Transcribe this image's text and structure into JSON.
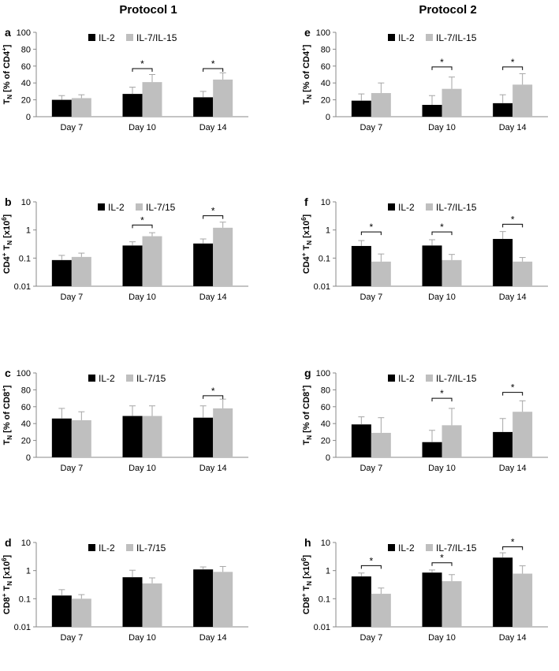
{
  "protocol_titles": [
    "Protocol 1",
    "Protocol 2"
  ],
  "colors": {
    "il2": "#000000",
    "il7": "#bfbfbf",
    "error_bar": "#a6a6a6",
    "axis": "#888888"
  },
  "chart_data": [
    {
      "panel": "a",
      "type": "bar",
      "scale": "linear",
      "ylabel_main": "T",
      "ylabel_sub": "N",
      "ylabel_rest": " [% of CD4",
      "ylabel_sup": "+",
      "ylabel_end": "]",
      "ylim": [
        0,
        100
      ],
      "ticks": [
        0,
        20,
        40,
        60,
        80,
        100
      ],
      "tick_labels": [
        "0",
        "20",
        "40",
        "60",
        "80",
        "100"
      ],
      "categories": [
        "Day 7",
        "Day 10",
        "Day 14"
      ],
      "series": [
        {
          "name": "IL-2",
          "values": [
            20,
            27,
            23
          ],
          "errors": [
            5,
            8,
            7
          ]
        },
        {
          "name": "IL-7/IL-15",
          "values": [
            22,
            41,
            44
          ],
          "errors": [
            4,
            9,
            8
          ]
        }
      ],
      "sig": [
        {
          "category": 1,
          "label": "*",
          "y": 57
        },
        {
          "category": 2,
          "label": "*",
          "y": 57
        }
      ]
    },
    {
      "panel": "b",
      "type": "bar",
      "scale": "log",
      "ylabel_main": "CD4",
      "ylabel_sup": "+",
      "ylabel_mid": " T",
      "ylabel_sub": "N",
      "ylabel_rest": " [x10",
      "ylabel_sup2": "6",
      "ylabel_end": "]",
      "ylim": [
        0.01,
        10
      ],
      "ticks": [
        0.01,
        0.1,
        1,
        10
      ],
      "tick_labels": [
        "0.01",
        "0.1",
        "1",
        "10"
      ],
      "categories": [
        "Day 7",
        "Day 10",
        "Day 14"
      ],
      "series": [
        {
          "name": "IL-2",
          "values": [
            0.085,
            0.28,
            0.33
          ],
          "errors": [
            0.04,
            0.1,
            0.15
          ]
        },
        {
          "name": "IL-7/15",
          "values": [
            0.11,
            0.6,
            1.2
          ],
          "errors": [
            0.04,
            0.2,
            0.7
          ]
        }
      ],
      "sig": [
        {
          "category": 1,
          "label": "*",
          "y": 1.5
        },
        {
          "category": 2,
          "label": "*",
          "y": 3.2
        }
      ]
    },
    {
      "panel": "c",
      "type": "bar",
      "scale": "linear",
      "ylabel_main": "T",
      "ylabel_sub": "N",
      "ylabel_rest": " [% of CD8",
      "ylabel_sup": "+",
      "ylabel_end": "]",
      "ylim": [
        0,
        100
      ],
      "ticks": [
        0,
        20,
        40,
        60,
        80,
        100
      ],
      "tick_labels": [
        "0",
        "20",
        "40",
        "60",
        "80",
        "100"
      ],
      "categories": [
        "Day 7",
        "Day 10",
        "Day 14"
      ],
      "series": [
        {
          "name": "IL-2",
          "values": [
            46,
            49,
            47
          ],
          "errors": [
            12,
            12,
            14
          ]
        },
        {
          "name": "IL-7/15",
          "values": [
            44,
            49,
            58
          ],
          "errors": [
            10,
            12,
            11
          ]
        }
      ],
      "sig": [
        {
          "category": 2,
          "label": "*",
          "y": 73
        }
      ]
    },
    {
      "panel": "d",
      "type": "bar",
      "scale": "log",
      "ylabel_main": "CD8",
      "ylabel_sup": "+",
      "ylabel_mid": " T",
      "ylabel_sub": "N",
      "ylabel_rest": " [x10",
      "ylabel_sup2": "6",
      "ylabel_end": "]",
      "ylim": [
        0.01,
        10
      ],
      "ticks": [
        0.01,
        0.1,
        1,
        10
      ],
      "tick_labels": [
        "0.01",
        "0.1",
        "1",
        "10"
      ],
      "categories": [
        "Day 7",
        "Day 10",
        "Day 14"
      ],
      "series": [
        {
          "name": "IL-2",
          "values": [
            0.13,
            0.58,
            1.1
          ],
          "errors": [
            0.08,
            0.45,
            0.25
          ]
        },
        {
          "name": "IL-7/15",
          "values": [
            0.1,
            0.35,
            0.9
          ],
          "errors": [
            0.04,
            0.2,
            0.5
          ]
        }
      ],
      "sig": []
    },
    {
      "panel": "e",
      "type": "bar",
      "scale": "linear",
      "ylabel_main": "T",
      "ylabel_sub": "N",
      "ylabel_rest": " [% of CD4",
      "ylabel_sup": "+",
      "ylabel_end": "]",
      "ylim": [
        0,
        100
      ],
      "ticks": [
        0,
        20,
        40,
        60,
        80,
        100
      ],
      "tick_labels": [
        "0",
        "20",
        "40",
        "60",
        "80",
        "100"
      ],
      "categories": [
        "Day 7",
        "Day 10",
        "Day 14"
      ],
      "series": [
        {
          "name": "IL-2",
          "values": [
            19,
            14,
            16
          ],
          "errors": [
            8,
            11,
            10
          ]
        },
        {
          "name": "IL-7/IL-15",
          "values": [
            28,
            33,
            38
          ],
          "errors": [
            12,
            14,
            13
          ]
        }
      ],
      "sig": [
        {
          "category": 1,
          "label": "*",
          "y": 59
        },
        {
          "category": 2,
          "label": "*",
          "y": 59
        }
      ]
    },
    {
      "panel": "f",
      "type": "bar",
      "scale": "log",
      "ylabel_main": "CD4",
      "ylabel_sup": "+",
      "ylabel_mid": " T",
      "ylabel_sub": "N",
      "ylabel_rest": " [x10",
      "ylabel_sup2": "6",
      "ylabel_end": "]",
      "ylim": [
        0.01,
        10
      ],
      "ticks": [
        0.01,
        0.1,
        1,
        10
      ],
      "tick_labels": [
        "0.01",
        "0.1",
        "1",
        "10"
      ],
      "categories": [
        "Day 7",
        "Day 10",
        "Day 14"
      ],
      "series": [
        {
          "name": "IL-2",
          "values": [
            0.27,
            0.28,
            0.48
          ],
          "errors": [
            0.15,
            0.17,
            0.4
          ]
        },
        {
          "name": "IL-7/IL-15",
          "values": [
            0.075,
            0.085,
            0.075
          ],
          "errors": [
            0.065,
            0.05,
            0.03
          ]
        }
      ],
      "sig": [
        {
          "category": 0,
          "label": "*",
          "y": 0.85
        },
        {
          "category": 1,
          "label": "*",
          "y": 0.85
        },
        {
          "category": 2,
          "label": "*",
          "y": 1.6
        }
      ]
    },
    {
      "panel": "g",
      "type": "bar",
      "scale": "linear",
      "ylabel_main": "T",
      "ylabel_sub": "N",
      "ylabel_rest": " [% of CD8",
      "ylabel_sup": "+",
      "ylabel_end": "]",
      "ylim": [
        0,
        100
      ],
      "ticks": [
        0,
        20,
        40,
        60,
        80,
        100
      ],
      "tick_labels": [
        "0",
        "20",
        "40",
        "60",
        "80",
        "100"
      ],
      "categories": [
        "Day 7",
        "Day 10",
        "Day 14"
      ],
      "series": [
        {
          "name": "IL-2",
          "values": [
            39,
            18,
            30
          ],
          "errors": [
            9,
            14,
            16
          ]
        },
        {
          "name": "IL-7/IL-15",
          "values": [
            29,
            38,
            54
          ],
          "errors": [
            18,
            20,
            13
          ]
        }
      ],
      "sig": [
        {
          "category": 1,
          "label": "*",
          "y": 70
        },
        {
          "category": 2,
          "label": "*",
          "y": 77
        }
      ]
    },
    {
      "panel": "h",
      "type": "bar",
      "scale": "log",
      "ylabel_main": "CD8",
      "ylabel_sup": "+",
      "ylabel_mid": " T",
      "ylabel_sub": "N",
      "ylabel_rest": " [x10",
      "ylabel_sup2": "6",
      "ylabel_end": "]",
      "ylim": [
        0.01,
        10
      ],
      "ticks": [
        0.01,
        0.1,
        1,
        10
      ],
      "tick_labels": [
        "0.01",
        "0.1",
        "1",
        "10"
      ],
      "categories": [
        "Day 7",
        "Day 10",
        "Day 14"
      ],
      "series": [
        {
          "name": "IL-2",
          "values": [
            0.62,
            0.85,
            2.9
          ],
          "errors": [
            0.2,
            0.2,
            1.4
          ]
        },
        {
          "name": "IL-7/IL-15",
          "values": [
            0.15,
            0.42,
            0.78
          ],
          "errors": [
            0.09,
            0.3,
            0.7
          ]
        }
      ],
      "sig": [
        {
          "category": 0,
          "label": "*",
          "y": 1.5
        },
        {
          "category": 1,
          "label": "*",
          "y": 1.9
        },
        {
          "category": 2,
          "label": "*",
          "y": 7
        }
      ]
    }
  ]
}
